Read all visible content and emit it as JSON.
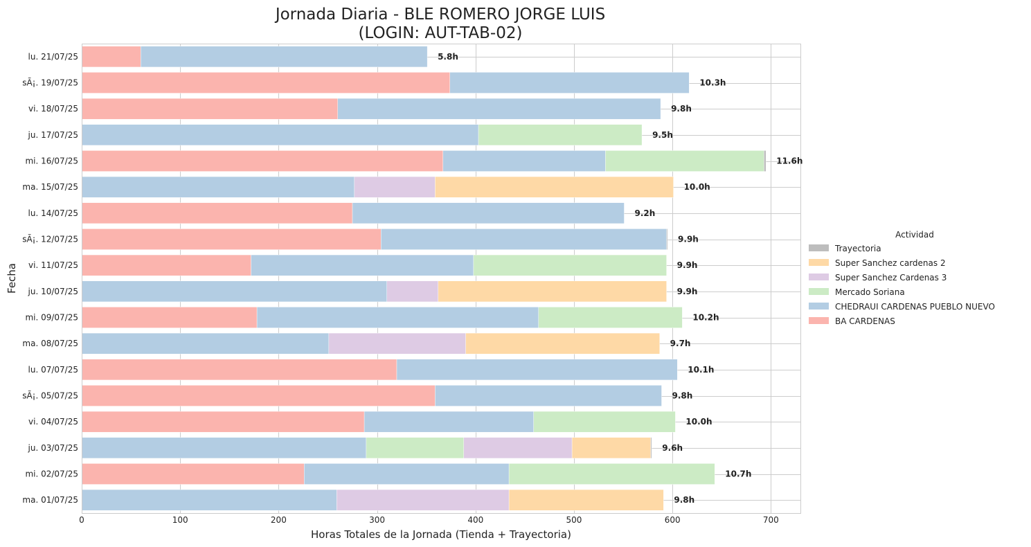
{
  "chart_data": {
    "type": "bar",
    "orientation": "horizontal",
    "stacked": true,
    "title": "Jornada Diaria - BLE ROMERO JORGE LUIS",
    "subtitle": "(LOGIN: AUT-TAB-02)",
    "xlabel": "Horas Totales de la Jornada (Tienda + Trayectoria)",
    "ylabel": "Fecha",
    "xlim": [
      0,
      730
    ],
    "xticks": [
      0,
      100,
      200,
      300,
      400,
      500,
      600,
      700
    ],
    "grid": true,
    "legend_title": "Actividad",
    "legend_position": "center-right",
    "series": [
      {
        "name": "BA CARDENAS",
        "color": "#fbb4ae",
        "values": [
          60,
          374,
          260,
          0,
          367,
          0,
          275,
          304,
          172,
          0,
          178,
          0,
          320,
          359,
          287,
          0,
          226,
          0
        ]
      },
      {
        "name": "CHEDRAUI CARDENAS PUEBLO NUEVO",
        "color": "#b3cde3",
        "values": [
          291,
          243,
          328,
          403,
          165,
          277,
          276,
          290,
          226,
          310,
          286,
          251,
          285,
          230,
          172,
          289,
          208,
          259
        ]
      },
      {
        "name": "Mercado Soriana",
        "color": "#ccebc5",
        "values": [
          0,
          0,
          0,
          166,
          161,
          0,
          0,
          0,
          196,
          0,
          146,
          0,
          0,
          0,
          144,
          99,
          209,
          0
        ]
      },
      {
        "name": "Super Sanchez Cardenas 3",
        "color": "#decbe4",
        "values": [
          0,
          0,
          0,
          0,
          0,
          82,
          0,
          0,
          0,
          52,
          0,
          139,
          0,
          0,
          0,
          110,
          0,
          175
        ]
      },
      {
        "name": "Super Sanchez cardenas 2",
        "color": "#fed9a6",
        "values": [
          0,
          0,
          0,
          0,
          0,
          242,
          0,
          0,
          0,
          232,
          0,
          197,
          0,
          0,
          0,
          80,
          0,
          157
        ]
      },
      {
        "name": "Trayectoria",
        "color": "#bdbdbd",
        "values": [
          0,
          0,
          0,
          0,
          2,
          0,
          0,
          1,
          0,
          0,
          0,
          0,
          0,
          0,
          0,
          1,
          0,
          0
        ]
      }
    ],
    "categories": [
      "lu. 21/07/25",
      "sÃ¡. 19/07/25",
      "vi. 18/07/25",
      "ju. 17/07/25",
      "mi. 16/07/25",
      "ma. 15/07/25",
      "lu. 14/07/25",
      "sÃ¡. 12/07/25",
      "vi. 11/07/25",
      "ju. 10/07/25",
      "mi. 09/07/25",
      "ma. 08/07/25",
      "lu. 07/07/25",
      "sÃ¡. 05/07/25",
      "vi. 04/07/25",
      "ju. 03/07/25",
      "mi. 02/07/25",
      "ma. 01/07/25"
    ],
    "totals_labels": [
      "5.8h",
      "10.3h",
      "9.8h",
      "9.5h",
      "11.6h",
      "10.0h",
      "9.2h",
      "9.9h",
      "9.9h",
      "9.9h",
      "10.2h",
      "9.7h",
      "10.1h",
      "9.8h",
      "10.0h",
      "9.6h",
      "10.7h",
      "9.8h"
    ],
    "legend_order": [
      "Trayectoria",
      "Super Sanchez cardenas 2",
      "Super Sanchez Cardenas 3",
      "Mercado Soriana",
      "CHEDRAUI CARDENAS PUEBLO NUEVO",
      "BA CARDENAS"
    ],
    "colors": {
      "grid": "#cccccc",
      "axes_edge": "#cccccc",
      "bar_edge": "#ffffff"
    }
  }
}
